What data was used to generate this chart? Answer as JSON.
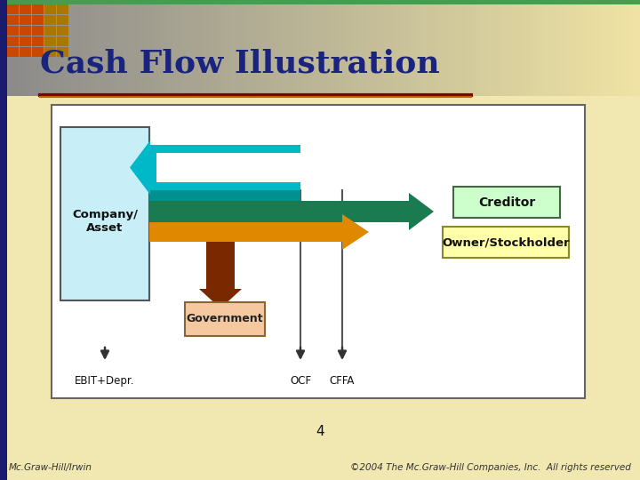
{
  "title": "Cash Flow Illustration",
  "title_color": "#1a237e",
  "bg_header_left": "#8a8a8a",
  "bg_header_right": "#f0e8b0",
  "bg_body": "#f0e8b0",
  "green_top_strip": "#4a9a50",
  "red_line_color": "#8b0000",
  "dark_left_stripe": "#1a1a6e",
  "footer_left": "Mc.Graw-Hill/Irwin",
  "footer_right": "©2004 The Mc.Graw-Hill Companies, Inc.  All rights reserved",
  "page_num": "4",
  "company_box_color": "#c8eef8",
  "company_box_border": "#555555",
  "company_label": "Company/\nAsset",
  "creditor_box_color": "#ccffcc",
  "creditor_box_border": "#446644",
  "creditor_label": "Creditor",
  "owner_box_color": "#ffffaa",
  "owner_box_border": "#888833",
  "owner_label": "Owner/Stockholder",
  "govt_box_color": "#f5c8a0",
  "govt_box_border": "#886633",
  "govt_label": "Government",
  "arrow_cyan_color": "#00b8c8",
  "arrow_teal_color": "#009090",
  "arrow_green_color": "#1a7a50",
  "arrow_orange_color": "#e08800",
  "arrow_brown_color": "#7a2800",
  "label_ebit": "EBIT+Depr.",
  "label_ocf": "OCF",
  "label_cffa": "CFFA"
}
